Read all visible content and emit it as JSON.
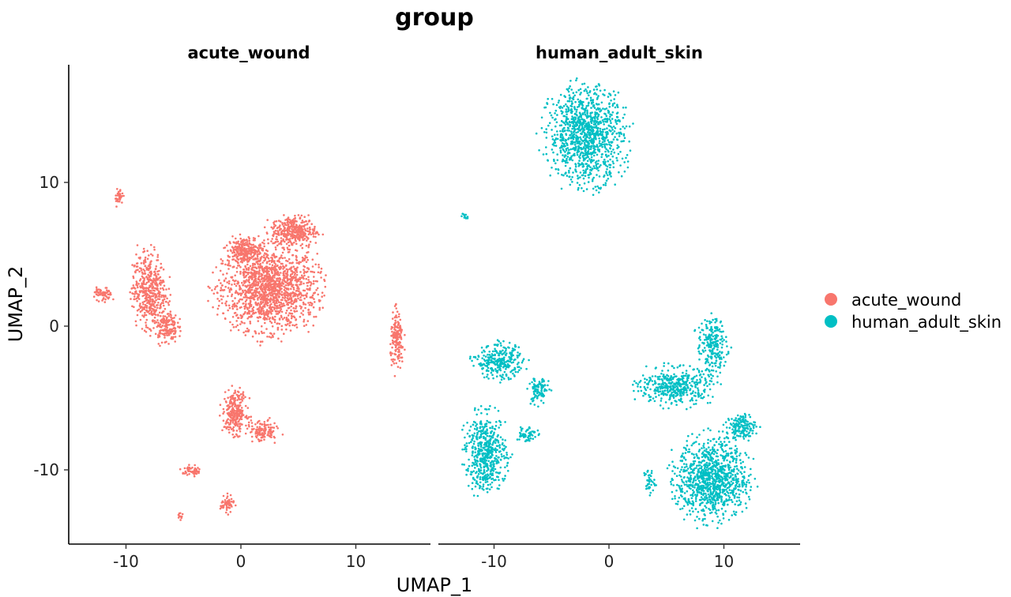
{
  "chart_data": {
    "type": "scatter",
    "title": "group",
    "xlabel": "UMAP_1",
    "ylabel": "UMAP_2",
    "xlim": [
      -15,
      16
    ],
    "ylim": [
      -15,
      18
    ],
    "xticks": [
      -10,
      0,
      10
    ],
    "yticks": [
      10,
      0,
      -10
    ],
    "xtick_labels": [
      "-10",
      "0",
      "10"
    ],
    "ytick_labels": [
      "10",
      "0",
      "-10"
    ],
    "grid": false,
    "legend_position": "right",
    "legend": [
      "acute_wound",
      "human_adult_skin"
    ],
    "colors": {
      "acute_wound": "#F8766D",
      "human_adult_skin": "#00BFC4"
    },
    "panels": [
      {
        "name": "acute_wound",
        "color": "#F8766D",
        "clusters": [
          {
            "x": 2.5,
            "y": 2.6,
            "rx": 4.2,
            "ry": 2.9,
            "n": 1500
          },
          {
            "x": 4.6,
            "y": 6.6,
            "rx": 2.0,
            "ry": 1.1,
            "n": 350
          },
          {
            "x": 0.3,
            "y": 5.3,
            "rx": 1.5,
            "ry": 0.9,
            "n": 220
          },
          {
            "x": -8.0,
            "y": 2.5,
            "rx": 1.5,
            "ry": 2.6,
            "n": 450
          },
          {
            "x": -6.5,
            "y": 0.0,
            "rx": 1.0,
            "ry": 1.2,
            "n": 160
          },
          {
            "x": -12.0,
            "y": 2.2,
            "rx": 0.8,
            "ry": 0.5,
            "n": 60
          },
          {
            "x": -10.6,
            "y": 9.0,
            "rx": 0.35,
            "ry": 0.6,
            "n": 35
          },
          {
            "x": 13.6,
            "y": -1.0,
            "rx": 0.6,
            "ry": 2.0,
            "n": 160
          },
          {
            "x": -0.5,
            "y": -6.0,
            "rx": 1.1,
            "ry": 1.5,
            "n": 260
          },
          {
            "x": 1.9,
            "y": -7.3,
            "rx": 1.2,
            "ry": 0.8,
            "n": 120
          },
          {
            "x": -4.2,
            "y": -10.1,
            "rx": 0.9,
            "ry": 0.4,
            "n": 55
          },
          {
            "x": -1.2,
            "y": -12.4,
            "rx": 0.6,
            "ry": 0.6,
            "n": 60
          },
          {
            "x": -5.3,
            "y": -13.2,
            "rx": 0.25,
            "ry": 0.25,
            "n": 12
          }
        ]
      },
      {
        "name": "human_adult_skin",
        "color": "#00BFC4",
        "clusters": [
          {
            "x": -2.0,
            "y": 13.3,
            "rx": 3.3,
            "ry": 3.3,
            "n": 1100
          },
          {
            "x": -9.5,
            "y": -2.5,
            "rx": 2.1,
            "ry": 1.2,
            "n": 280
          },
          {
            "x": -6.1,
            "y": -4.5,
            "rx": 0.9,
            "ry": 1.0,
            "n": 100
          },
          {
            "x": -10.7,
            "y": -8.8,
            "rx": 1.8,
            "ry": 2.6,
            "n": 520
          },
          {
            "x": -7.2,
            "y": -7.5,
            "rx": 0.9,
            "ry": 0.6,
            "n": 60
          },
          {
            "x": 5.8,
            "y": -4.2,
            "rx": 3.2,
            "ry": 1.3,
            "n": 420
          },
          {
            "x": 9.0,
            "y": -1.3,
            "rx": 1.3,
            "ry": 1.9,
            "n": 220
          },
          {
            "x": 9.0,
            "y": -10.6,
            "rx": 3.1,
            "ry": 2.8,
            "n": 1000
          },
          {
            "x": 11.5,
            "y": -7.0,
            "rx": 1.3,
            "ry": 0.9,
            "n": 150
          },
          {
            "x": 3.5,
            "y": -10.8,
            "rx": 0.5,
            "ry": 0.9,
            "n": 40
          },
          {
            "x": -12.6,
            "y": 7.6,
            "rx": 0.3,
            "ry": 0.3,
            "n": 10
          }
        ]
      }
    ]
  }
}
